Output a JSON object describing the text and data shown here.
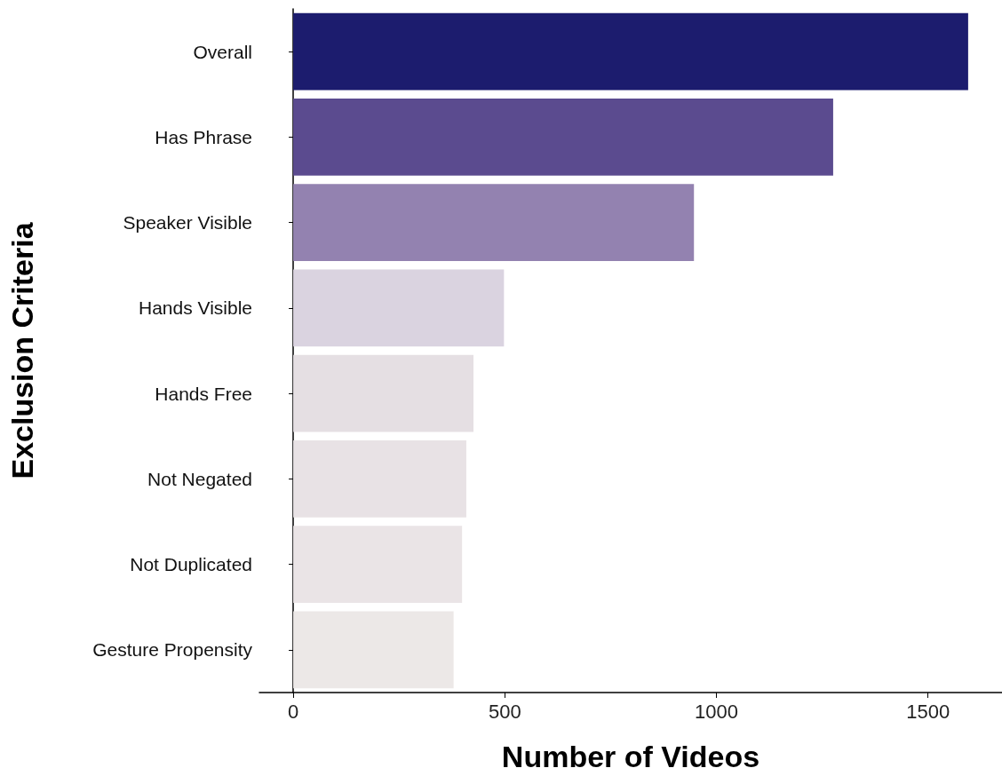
{
  "chart_data": {
    "type": "bar",
    "orientation": "horizontal",
    "xlabel": "Number of Videos",
    "ylabel": "Exclusion Criteria",
    "categories": [
      "Overall",
      "Has Phrase",
      "Speaker Visible",
      "Hands Visible",
      "Hands Free",
      "Not Negated",
      "Not Duplicated",
      "Gesture Propensity"
    ],
    "values": [
      1595,
      1276,
      947,
      498,
      426,
      409,
      399,
      379
    ],
    "colors": [
      "#1c1c6e",
      "#5b4b8f",
      "#9382b0",
      "#dad3e0",
      "#e5dfe3",
      "#e8e2e5",
      "#eae4e6",
      "#ece8e7"
    ],
    "xlim": [
      -80,
      1675
    ],
    "xticks": [
      0,
      500,
      1000,
      1500
    ],
    "grid": false
  }
}
